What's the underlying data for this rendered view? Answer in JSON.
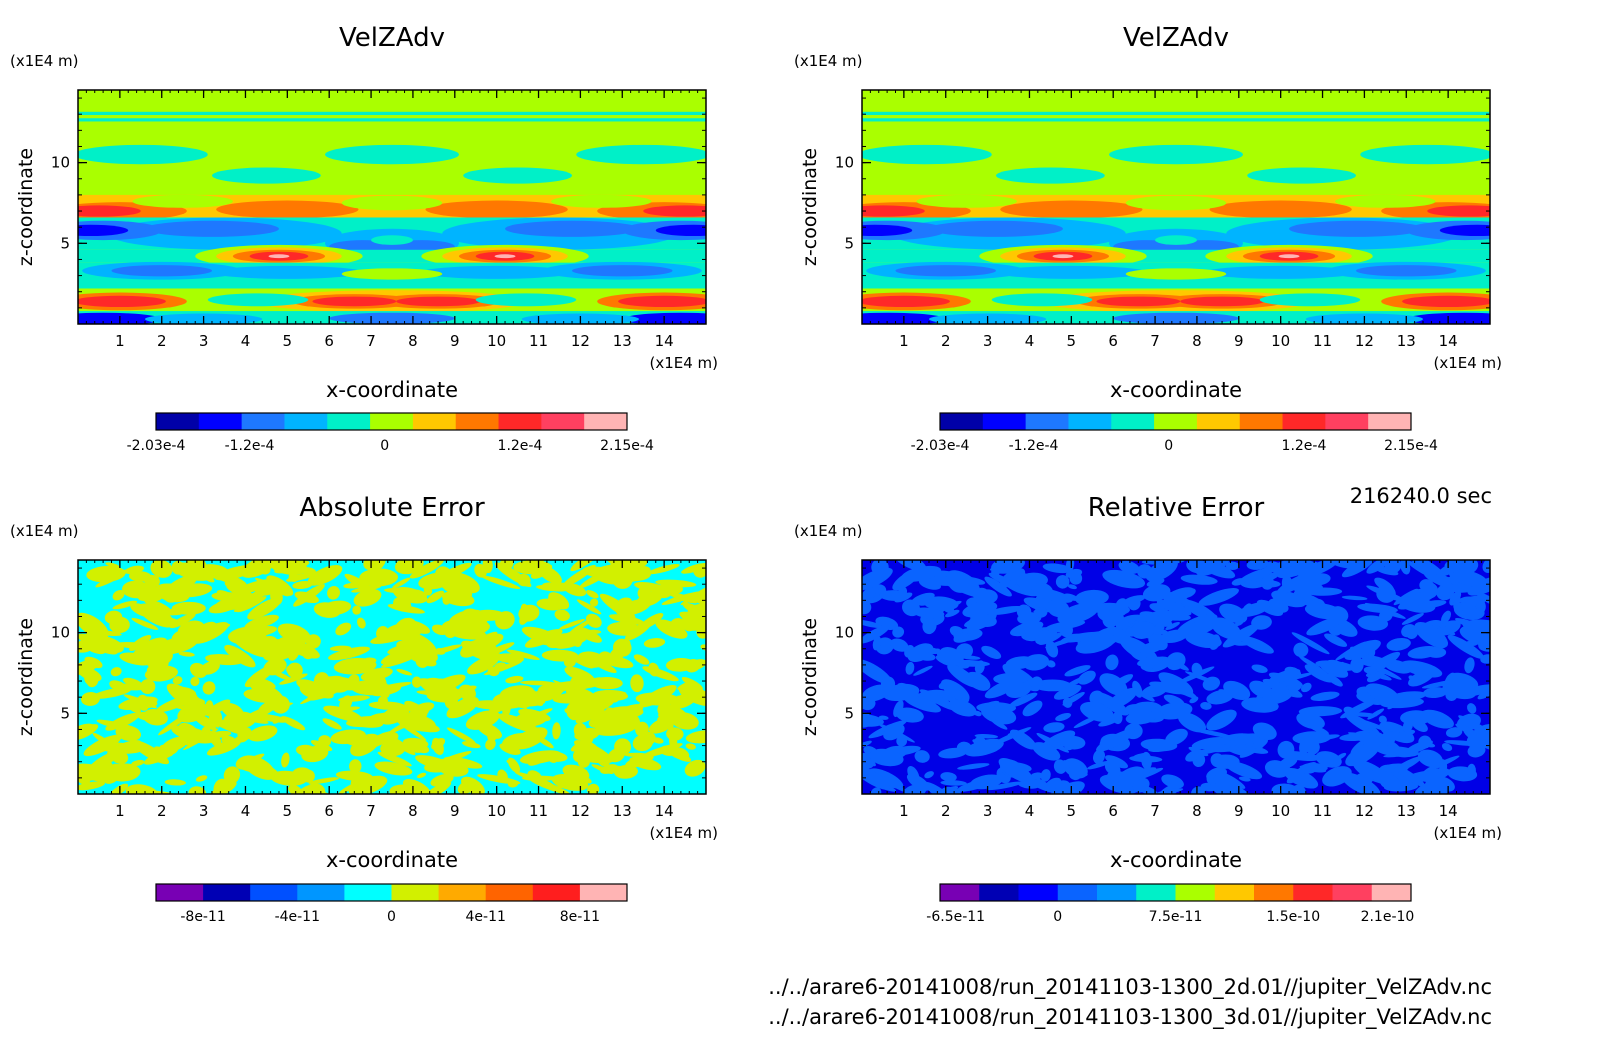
{
  "chart_data": [
    {
      "type": "heatmap",
      "title": "VelZAdv",
      "xlabel": "x-coordinate",
      "ylabel": "z-coordinate",
      "x_unit": "(x1E4 m)",
      "y_unit": "(x1E4 m)",
      "xlim": [
        0,
        15
      ],
      "ylim": [
        0,
        14.5
      ],
      "xticks": [
        1,
        2,
        3,
        4,
        5,
        6,
        7,
        8,
        9,
        10,
        11,
        12,
        13,
        14
      ],
      "yticks": [
        5,
        10
      ],
      "colorbar": {
        "colors": [
          "#0000a8",
          "#0000ff",
          "#1e78ff",
          "#00b4ff",
          "#00f0c8",
          "#aaff00",
          "#ffc800",
          "#ff7800",
          "#ff2828",
          "#ff4060",
          "#ffb4b4"
        ],
        "tick_values": [
          -0.000203,
          -0.00012,
          0,
          0.00012,
          0.000215
        ],
        "tick_labels": [
          "-2.03e-4",
          "-1.2e-4",
          "0",
          "1.2e-4",
          "2.15e-4"
        ],
        "range": [
          -0.000203,
          0.000215
        ]
      }
    },
    {
      "type": "heatmap",
      "title": "VelZAdv",
      "xlabel": "x-coordinate",
      "ylabel": "z-coordinate",
      "x_unit": "(x1E4 m)",
      "y_unit": "(x1E4 m)",
      "xlim": [
        0,
        15
      ],
      "ylim": [
        0,
        14.5
      ],
      "xticks": [
        1,
        2,
        3,
        4,
        5,
        6,
        7,
        8,
        9,
        10,
        11,
        12,
        13,
        14
      ],
      "yticks": [
        5,
        10
      ],
      "colorbar": {
        "colors": [
          "#0000a8",
          "#0000ff",
          "#1e78ff",
          "#00b4ff",
          "#00f0c8",
          "#aaff00",
          "#ffc800",
          "#ff7800",
          "#ff2828",
          "#ff4060",
          "#ffb4b4"
        ],
        "tick_values": [
          -0.000203,
          -0.00012,
          0,
          0.00012,
          0.000215
        ],
        "tick_labels": [
          "-2.03e-4",
          "-1.2e-4",
          "0",
          "1.2e-4",
          "2.15e-4"
        ],
        "range": [
          -0.000203,
          0.000215
        ]
      }
    },
    {
      "type": "heatmap",
      "title": "Absolute Error",
      "xlabel": "x-coordinate",
      "ylabel": "z-coordinate",
      "x_unit": "(x1E4 m)",
      "y_unit": "(x1E4 m)",
      "xlim": [
        0,
        15
      ],
      "ylim": [
        0,
        14.5
      ],
      "xticks": [
        1,
        2,
        3,
        4,
        5,
        6,
        7,
        8,
        9,
        10,
        11,
        12,
        13,
        14
      ],
      "yticks": [
        5,
        10
      ],
      "field_colors": [
        "#00ffff",
        "#d2f000"
      ],
      "colorbar": {
        "colors": [
          "#7800b4",
          "#0000b4",
          "#0050ff",
          "#0096ff",
          "#00ffff",
          "#d2f000",
          "#ffaa00",
          "#ff6400",
          "#ff1e1e",
          "#ffb4b4"
        ],
        "tick_values": [
          -8e-11,
          -4e-11,
          0,
          4e-11,
          8e-11
        ],
        "tick_labels": [
          "-8e-11",
          "-4e-11",
          "0",
          "4e-11",
          "8e-11"
        ],
        "range": [
          -1e-10,
          1e-10
        ]
      }
    },
    {
      "type": "heatmap",
      "title": "Relative Error",
      "xlabel": "x-coordinate",
      "ylabel": "z-coordinate",
      "x_unit": "(x1E4 m)",
      "y_unit": "(x1E4 m)",
      "xlim": [
        0,
        15
      ],
      "ylim": [
        0,
        14.5
      ],
      "xticks": [
        1,
        2,
        3,
        4,
        5,
        6,
        7,
        8,
        9,
        10,
        11,
        12,
        13,
        14
      ],
      "yticks": [
        5,
        10
      ],
      "field_colors": [
        "#0000e6",
        "#0a64ff"
      ],
      "colorbar": {
        "colors": [
          "#7800b4",
          "#0000b4",
          "#0000ff",
          "#0a64ff",
          "#0096ff",
          "#00f0c8",
          "#aaff00",
          "#ffc800",
          "#ff7800",
          "#ff2828",
          "#ff4060",
          "#ffb4b4"
        ],
        "tick_values": [
          -6.5e-11,
          0,
          7.5e-11,
          1.5e-10,
          2.1e-10
        ],
        "tick_labels": [
          "-6.5e-11",
          "0",
          "7.5e-11",
          "1.5e-10",
          "2.1e-10"
        ],
        "range": [
          -7.5e-11,
          2.25e-10
        ]
      }
    }
  ],
  "annotations": {
    "time": "216240.0 sec",
    "file1": "../../arare6-20141008/run_20141103-1300_2d.01//jupiter_VelZAdv.nc",
    "file2": "../../arare6-20141008/run_20141103-1300_3d.01//jupiter_VelZAdv.nc"
  }
}
